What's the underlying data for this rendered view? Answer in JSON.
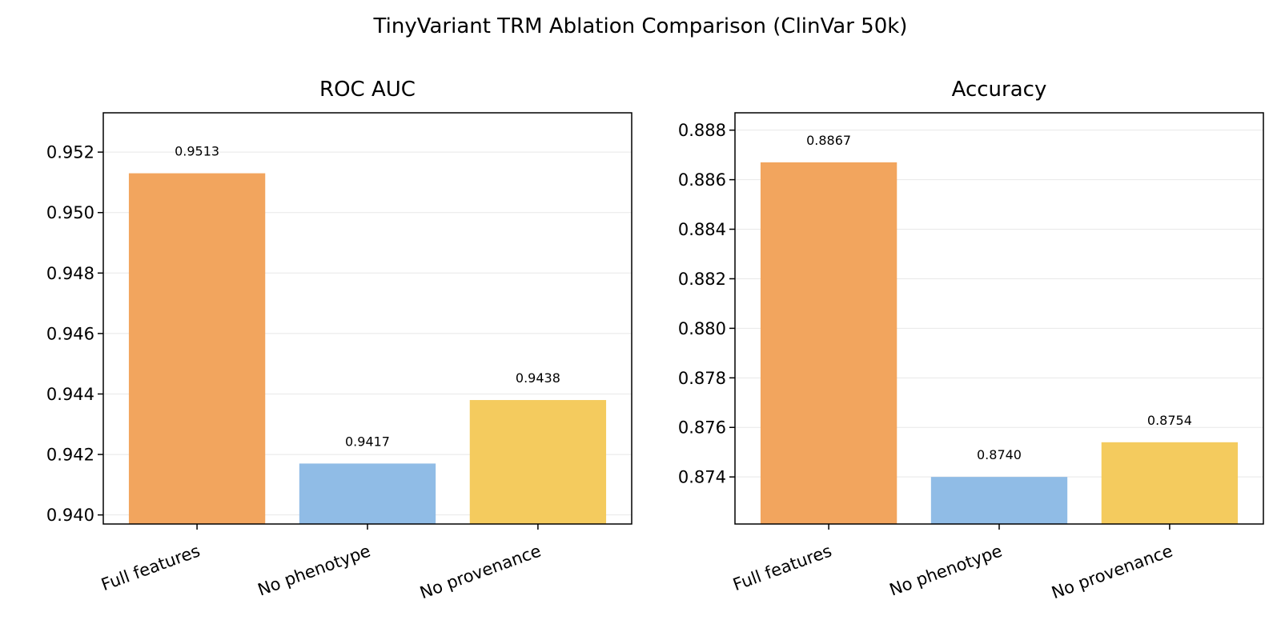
{
  "figure": {
    "title": "TinyVariant TRM Ablation Comparison (ClinVar 50k)"
  },
  "chart_data": [
    {
      "type": "bar",
      "title": "ROC AUC",
      "xlabel": "",
      "ylabel": "",
      "categories": [
        "Full features",
        "No phenotype",
        "No provenance"
      ],
      "values": [
        0.9513,
        0.9417,
        0.9438
      ],
      "value_labels": [
        "0.9513",
        "0.9417",
        "0.9438"
      ],
      "colors": [
        "#f2a55e",
        "#90bce6",
        "#f4cb5e"
      ],
      "ylim": [
        0.9397,
        0.9533
      ],
      "yticks": [
        0.94,
        0.942,
        0.944,
        0.946,
        0.948,
        0.95,
        0.952
      ],
      "ytick_labels": [
        "0.940",
        "0.942",
        "0.944",
        "0.946",
        "0.948",
        "0.950",
        "0.952"
      ],
      "grid": "y"
    },
    {
      "type": "bar",
      "title": "Accuracy",
      "xlabel": "",
      "ylabel": "",
      "categories": [
        "Full features",
        "No phenotype",
        "No provenance"
      ],
      "values": [
        0.8867,
        0.874,
        0.8754
      ],
      "value_labels": [
        "0.8867",
        "0.8740",
        "0.8754"
      ],
      "colors": [
        "#f2a55e",
        "#90bce6",
        "#f4cb5e"
      ],
      "ylim": [
        0.8721,
        0.8887
      ],
      "yticks": [
        0.874,
        0.876,
        0.878,
        0.88,
        0.882,
        0.884,
        0.886,
        0.888
      ],
      "ytick_labels": [
        "0.874",
        "0.876",
        "0.878",
        "0.880",
        "0.882",
        "0.884",
        "0.886",
        "0.888"
      ],
      "grid": "y"
    }
  ]
}
